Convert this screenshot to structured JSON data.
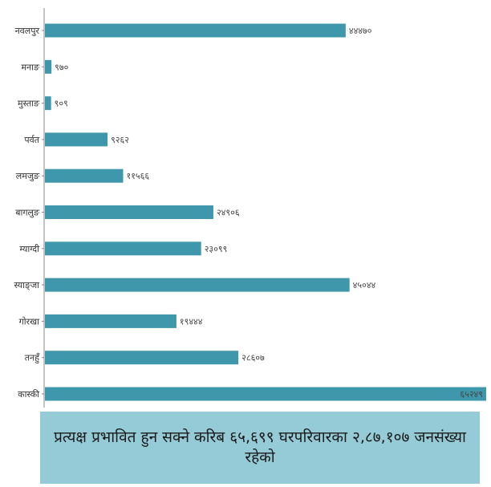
{
  "colors": {
    "bar": "#3e97ab",
    "banner": "#95cad7",
    "axis": "#888888"
  },
  "banner": {
    "text": "प्रत्यक्ष प्रभावित हुन सक्ने करिब ६५,६९९ घरपरिवारका २,८७,१०७ जनसंख्या रहेको"
  },
  "chart_data": {
    "type": "bar",
    "orientation": "horizontal",
    "categories": [
      "नवलपुर",
      "मनाङ",
      "मुस्ताङ",
      "पर्वत",
      "लमजुङ",
      "बागलुङ",
      "म्याग्दी",
      "स्याङ्जा",
      "गोरखा",
      "तनहुँ",
      "कास्की"
    ],
    "values": [
      44470,
      970,
      909,
      9262,
      11566,
      24906,
      23099,
      45044,
      19444,
      28607,
      65249
    ],
    "value_labels": [
      "४४४७०",
      "९७०",
      "९०९",
      "९२६२",
      "११५६६",
      "२४९०६",
      "२३०९९",
      "४५०४४",
      "१९४४४",
      "२८६०७",
      "६५२४९"
    ],
    "xlim": [
      0,
      65249
    ]
  }
}
